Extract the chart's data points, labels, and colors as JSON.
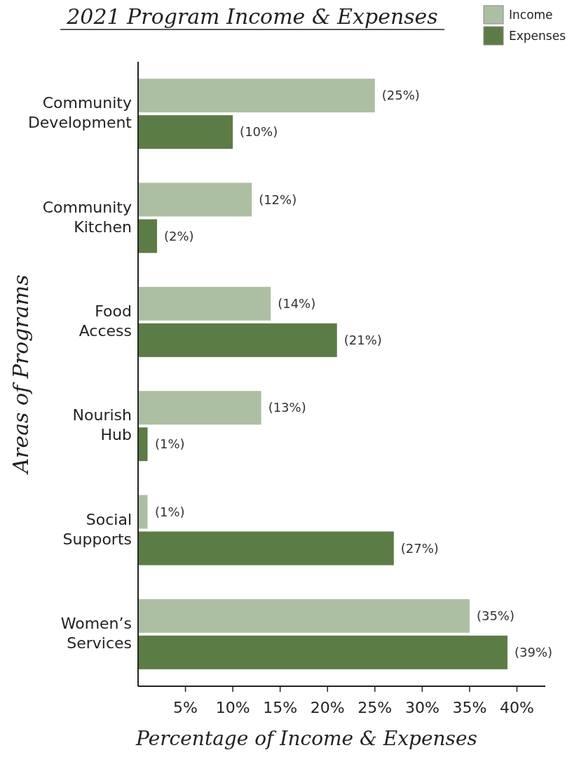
{
  "chart_data": {
    "type": "bar",
    "orientation": "horizontal",
    "title": "2021 Program Income & Expenses",
    "xlabel": "Percentage of Income & Expenses",
    "ylabel": "Areas of Programs",
    "categories": [
      "Community Development",
      "Community Kitchen",
      "Food Access",
      "Nourish Hub",
      "Social Supports",
      "Women’s Services"
    ],
    "series": [
      {
        "name": "Income",
        "color": "#adbfa3",
        "values": [
          25,
          12,
          14,
          13,
          1,
          35
        ],
        "value_labels": [
          "(25%)",
          "(12%)",
          "(14%)",
          "(13%)",
          "(1%)",
          "(35%)"
        ]
      },
      {
        "name": "Expenses",
        "color": "#5c7c46",
        "values": [
          10,
          2,
          21,
          1,
          27,
          39
        ],
        "value_labels": [
          "(10%)",
          "(2%)",
          "(21%)",
          "(1%)",
          "(27%)",
          "(39%)"
        ]
      }
    ],
    "xlim": [
      0,
      43
    ],
    "xticks": [
      {
        "value": 5,
        "label": "5%"
      },
      {
        "value": 10,
        "label": "10%"
      },
      {
        "value": 15,
        "label": "15%"
      },
      {
        "value": 20,
        "label": "20%"
      },
      {
        "value": 25,
        "label": "25%"
      },
      {
        "value": 30,
        "label": "30%"
      },
      {
        "value": 35,
        "label": "35%"
      },
      {
        "value": 40,
        "label": "40%"
      }
    ],
    "legend": "top right"
  }
}
